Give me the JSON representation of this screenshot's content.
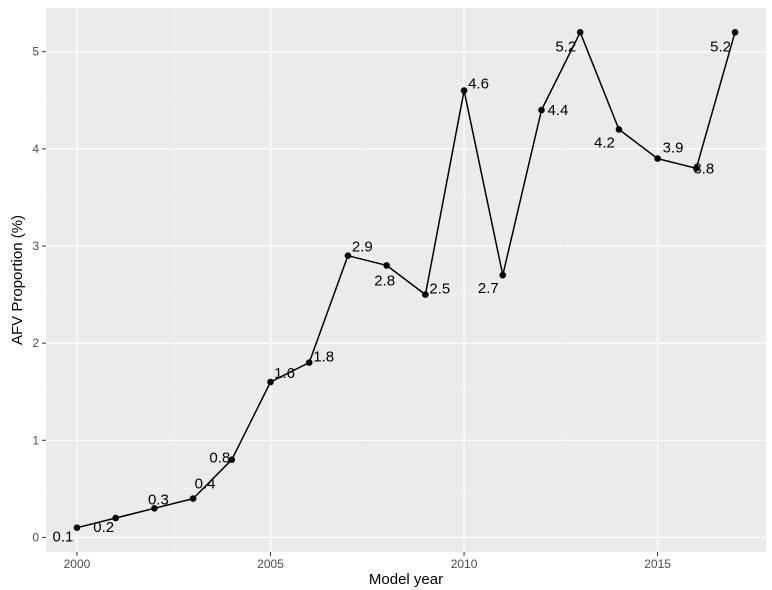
{
  "chart_data": {
    "type": "line",
    "xlabel": "Model year",
    "ylabel": "AFV Proportion (%)",
    "xlim": [
      1999.2,
      2017.8
    ],
    "ylim": [
      -0.15,
      5.45
    ],
    "x_ticks": [
      2000,
      2005,
      2010,
      2015
    ],
    "y_ticks": [
      0,
      1,
      2,
      3,
      4,
      5
    ],
    "grid": true,
    "legend": "none",
    "colors": {
      "panel": "#ebebeb",
      "grid_major": "#ffffff",
      "grid_minor": "#f5f5f5",
      "line": "#000000"
    },
    "x": [
      2000,
      2001,
      2002,
      2003,
      2004,
      2005,
      2006,
      2007,
      2008,
      2009,
      2010,
      2011,
      2012,
      2013,
      2014,
      2015,
      2016,
      2017
    ],
    "values": [
      0.1,
      0.2,
      0.3,
      0.4,
      0.8,
      1.6,
      1.8,
      2.9,
      2.8,
      2.5,
      4.6,
      2.7,
      4.4,
      5.2,
      4.2,
      3.9,
      3.8,
      5.2
    ],
    "data_labels": [
      "0.1",
      "0.2",
      "0.3",
      "0.4",
      "0.8",
      "1.6",
      "1.8",
      "2.9",
      "2.8",
      "2.5",
      "4.6",
      "2.7",
      "4.4",
      "5.2",
      "4.2",
      "3.9",
      "3.8",
      "5.2"
    ]
  }
}
